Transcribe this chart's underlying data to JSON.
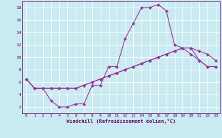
{
  "title": "",
  "xlabel": "Windchill (Refroidissement éolien,°C)",
  "ylabel": "",
  "bg_color": "#c8eaf0",
  "grid_color": "#ffffff",
  "line_color": "#993399",
  "xlim": [
    -0.5,
    23.5
  ],
  "ylim": [
    1,
    19
  ],
  "xticks": [
    0,
    1,
    2,
    3,
    4,
    5,
    6,
    7,
    8,
    9,
    10,
    11,
    12,
    13,
    14,
    15,
    16,
    17,
    18,
    19,
    20,
    21,
    22,
    23
  ],
  "yticks": [
    2,
    4,
    6,
    8,
    10,
    12,
    14,
    16,
    18
  ],
  "line1_x": [
    0,
    1,
    2,
    3,
    4,
    5,
    6,
    7,
    8,
    9,
    10,
    11,
    12,
    13,
    14,
    15,
    16,
    17,
    18,
    19,
    20,
    21,
    22,
    23
  ],
  "line1_y": [
    6.5,
    5.0,
    5.0,
    3.0,
    2.0,
    2.0,
    2.5,
    2.5,
    5.5,
    5.5,
    8.5,
    8.5,
    13.0,
    15.5,
    18.0,
    18.0,
    18.5,
    17.5,
    12.0,
    11.5,
    10.5,
    9.5,
    8.5,
    8.5
  ],
  "line2_x": [
    0,
    1,
    2,
    3,
    4,
    5,
    6,
    7,
    8,
    9,
    10,
    11,
    12,
    13,
    14,
    15,
    16,
    17,
    18,
    19,
    20,
    21,
    22,
    23
  ],
  "line2_y": [
    6.5,
    5.0,
    5.0,
    5.0,
    5.0,
    5.0,
    5.0,
    5.5,
    6.0,
    6.5,
    7.0,
    7.5,
    8.0,
    8.5,
    9.0,
    9.5,
    10.0,
    10.5,
    11.0,
    11.5,
    11.5,
    11.0,
    10.5,
    9.5
  ],
  "line3_x": [
    0,
    1,
    2,
    3,
    4,
    5,
    6,
    7,
    8,
    9,
    10,
    11,
    12,
    13,
    14,
    15,
    16,
    17,
    18,
    19,
    20,
    21,
    22,
    23
  ],
  "line3_y": [
    6.5,
    5.0,
    5.0,
    5.0,
    5.0,
    5.0,
    5.0,
    5.5,
    6.0,
    6.5,
    7.0,
    7.5,
    8.0,
    8.5,
    9.0,
    9.5,
    10.0,
    10.5,
    11.0,
    11.5,
    11.5,
    9.5,
    8.5,
    8.5
  ],
  "marker": "D",
  "markersize": 2,
  "linewidth": 0.8,
  "tick_fontsize": 4.5,
  "xlabel_fontsize": 5.0
}
